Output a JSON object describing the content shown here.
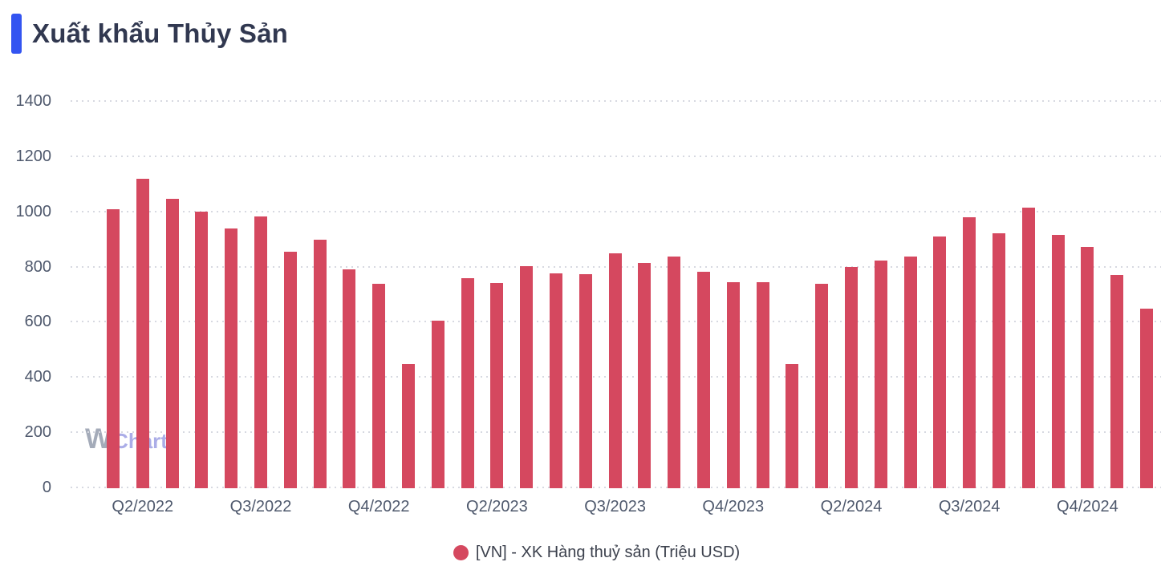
{
  "header": {
    "title": "Xuất khẩu Thủy Sản"
  },
  "watermark": {
    "part_w": "W",
    "part_chart": "Chart"
  },
  "legend": {
    "label": "[VN] - XK Hàng thuỷ sản (Triệu USD)"
  },
  "colors": {
    "accent": "#3354f1",
    "bar": "#d5485f",
    "grid": "#d7d9e1",
    "axis_label": "#4f596d",
    "title": "#313850",
    "legend_text": "#3c414d",
    "watermark_w": "#8e97a8",
    "watermark_chart": "#8f92e0",
    "watermark_dot": "#eda73f"
  },
  "chart_data": {
    "type": "bar",
    "title": "Xuất khẩu Thủy Sản",
    "unit": "Triệu USD",
    "series": [
      {
        "name": "[VN] - XK Hàng thuỷ sản (Triệu USD)",
        "color": "#d5485f",
        "values": [
          1012,
          1120,
          1048,
          1003,
          940,
          985,
          858,
          900,
          793,
          740,
          450,
          606,
          760,
          744,
          806,
          778,
          775,
          850,
          815,
          838,
          783,
          746,
          746,
          450,
          740,
          801,
          825,
          838,
          913,
          982,
          925,
          1017,
          919,
          873,
          772,
          651
        ]
      }
    ],
    "bar_count": 36,
    "x_tick_labels": [
      {
        "bar_index": 1,
        "label": "Q2/2022"
      },
      {
        "bar_index": 5,
        "label": "Q3/2022"
      },
      {
        "bar_index": 9,
        "label": "Q4/2022"
      },
      {
        "bar_index": 13,
        "label": "Q2/2023"
      },
      {
        "bar_index": 17,
        "label": "Q3/2023"
      },
      {
        "bar_index": 21,
        "label": "Q4/2023"
      },
      {
        "bar_index": 25,
        "label": "Q2/2024"
      },
      {
        "bar_index": 29,
        "label": "Q3/2024"
      },
      {
        "bar_index": 33,
        "label": "Q4/2024"
      }
    ],
    "y_ticks": [
      0,
      200,
      400,
      600,
      800,
      1000,
      1200,
      1400
    ],
    "ylim": [
      0,
      1400
    ],
    "xlabel": "",
    "ylabel": "",
    "grid": "horizontal-dotted",
    "legend_position": "bottom-center"
  }
}
